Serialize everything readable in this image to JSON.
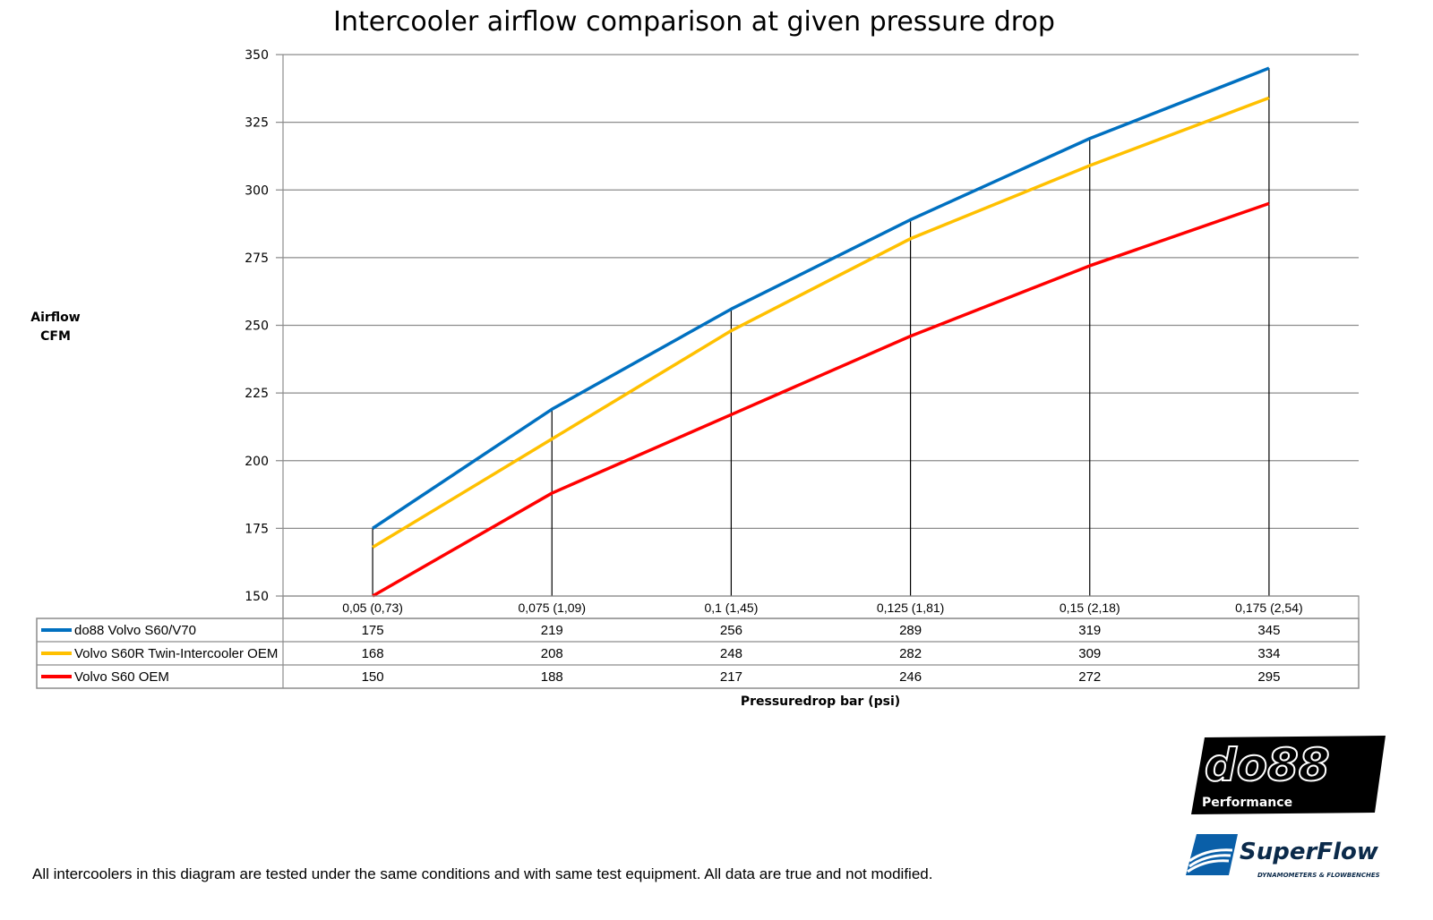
{
  "chart_data": {
    "type": "line",
    "title": "Intercooler airflow comparison at given pressure drop",
    "ylabel": [
      "Airflow",
      "CFM"
    ],
    "xlabel": "Pressuredrop bar (psi)",
    "ylim": [
      150,
      350
    ],
    "yticks": [
      150,
      175,
      200,
      225,
      250,
      275,
      300,
      325,
      350
    ],
    "grid": true,
    "legend": "data-table-left",
    "categories": [
      "0,05 (0,73)",
      "0,075 (1,09)",
      "0,1 (1,45)",
      "0,125 (1,81)",
      "0,15 (2,18)",
      "0,175 (2,54)"
    ],
    "series": [
      {
        "name": "do88 Volvo S60/V70",
        "color": "#0070c0",
        "values": [
          175,
          219,
          256,
          289,
          319,
          345
        ]
      },
      {
        "name": "Volvo S60R Twin-Intercooler OEM",
        "color": "#ffc000",
        "values": [
          168,
          208,
          248,
          282,
          309,
          334
        ]
      },
      {
        "name": "Volvo S60 OEM",
        "color": "#ff0000",
        "values": [
          150,
          188,
          217,
          246,
          272,
          295
        ]
      }
    ]
  },
  "footnote": "All intercoolers in this diagram are tested under the same conditions and with same test equipment. All data are true and not modified.",
  "logos": {
    "do88": {
      "text": "do88",
      "subtext": "Performance"
    },
    "superflow": {
      "text": "SuperFlow",
      "subtext": "DYNAMOMETERS & FLOWBENCHES",
      "color": "#0a5fa8"
    }
  }
}
